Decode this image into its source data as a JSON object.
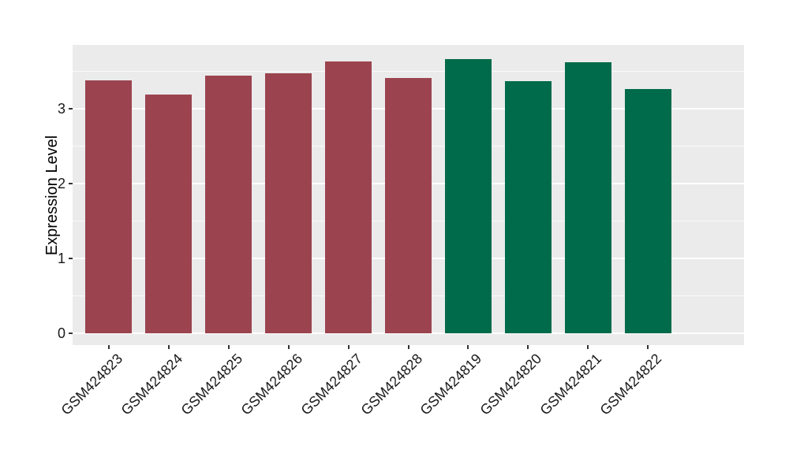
{
  "chart_data": {
    "type": "bar",
    "title": "",
    "xlabel": "",
    "ylabel": "Expression Level",
    "categories": [
      "GSM424823",
      "GSM424824",
      "GSM424825",
      "GSM424826",
      "GSM424827",
      "GSM424828",
      "GSM424819",
      "GSM424820",
      "GSM424821",
      "GSM424822"
    ],
    "values": [
      3.38,
      3.19,
      3.44,
      3.47,
      3.63,
      3.41,
      3.66,
      3.37,
      3.62,
      3.26
    ],
    "bar_colors": [
      "#9B4450",
      "#9B4450",
      "#9B4450",
      "#9B4450",
      "#9B4450",
      "#9B4450",
      "#006B4A",
      "#006B4A",
      "#006B4A",
      "#006B4A"
    ],
    "group_colors": {
      "group1": "#9B4450",
      "group2": "#006B4A"
    },
    "yticks": [
      0,
      1,
      2,
      3
    ],
    "yticks_minor": [
      0.5,
      1.5,
      2.5,
      3.5
    ],
    "ylim": [
      -0.16,
      3.85
    ],
    "grid": true,
    "legend": "none",
    "panel_background": "#EBEBEB",
    "gridline_color": "#FFFFFF"
  }
}
